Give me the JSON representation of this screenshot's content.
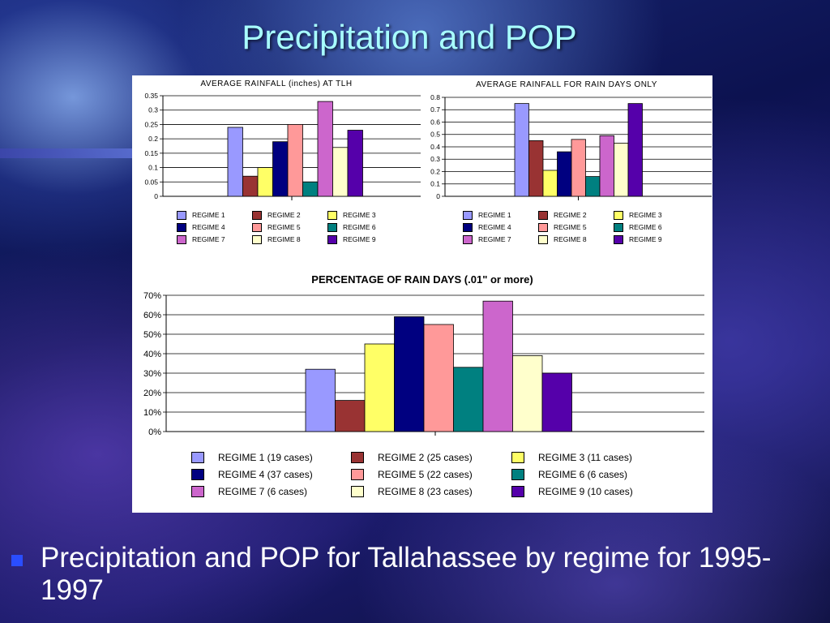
{
  "slide": {
    "title": "Precipitation and POP",
    "bullet": "Precipitation and POP for Tallahassee by regime for 1995-1997"
  },
  "colors": {
    "title_text": "#a8ffff",
    "bullet_mark": "#2a4dff",
    "regimes": [
      "#9999ff",
      "#993333",
      "#ffff66",
      "#000080",
      "#ff9999",
      "#008080",
      "#cc66cc",
      "#ffffcc",
      "#5500aa"
    ]
  },
  "chart_data": [
    {
      "type": "bar",
      "title": "AVERAGE RAINFALL (inches) AT TLH",
      "categories": [
        ""
      ],
      "ylim": [
        0,
        0.35
      ],
      "yticks": [
        "0",
        "0.05",
        "0.1",
        "0.15",
        "0.2",
        "0.25",
        "0.3",
        "0.35"
      ],
      "grid": true,
      "legend_placement": "bottom",
      "series": [
        {
          "name": "REGIME 1",
          "values": [
            0.24
          ]
        },
        {
          "name": "REGIME 2",
          "values": [
            0.07
          ]
        },
        {
          "name": "REGIME 3",
          "values": [
            0.1
          ]
        },
        {
          "name": "REGIME 4",
          "values": [
            0.19
          ]
        },
        {
          "name": "REGIME 5",
          "values": [
            0.25
          ]
        },
        {
          "name": "REGIME 6",
          "values": [
            0.05
          ]
        },
        {
          "name": "REGIME 7",
          "values": [
            0.33
          ]
        },
        {
          "name": "REGIME 8",
          "values": [
            0.17
          ]
        },
        {
          "name": "REGIME 9",
          "values": [
            0.23
          ]
        }
      ]
    },
    {
      "type": "bar",
      "title": "AVERAGE RAINFALL FOR RAIN DAYS ONLY",
      "categories": [
        ""
      ],
      "ylim": [
        0,
        0.8
      ],
      "yticks": [
        "0",
        "0.1",
        "0.2",
        "0.3",
        "0.4",
        "0.5",
        "0.6",
        "0.7",
        "0.8"
      ],
      "grid": true,
      "legend_placement": "bottom",
      "series": [
        {
          "name": "REGIME 1",
          "values": [
            0.75
          ]
        },
        {
          "name": "REGIME 2",
          "values": [
            0.45
          ]
        },
        {
          "name": "REGIME 3",
          "values": [
            0.21
          ]
        },
        {
          "name": "REGIME 4",
          "values": [
            0.36
          ]
        },
        {
          "name": "REGIME 5",
          "values": [
            0.46
          ]
        },
        {
          "name": "REGIME 6",
          "values": [
            0.16
          ]
        },
        {
          "name": "REGIME 7",
          "values": [
            0.49
          ]
        },
        {
          "name": "REGIME 8",
          "values": [
            0.43
          ]
        },
        {
          "name": "REGIME 9",
          "values": [
            0.75
          ]
        }
      ]
    },
    {
      "type": "bar",
      "title": "PERCENTAGE OF RAIN DAYS (.01\" or more)",
      "categories": [
        ""
      ],
      "ylim": [
        0,
        70
      ],
      "yticks": [
        "0%",
        "10%",
        "20%",
        "30%",
        "40%",
        "50%",
        "60%",
        "70%"
      ],
      "grid": true,
      "legend_placement": "bottom",
      "series": [
        {
          "name": "REGIME 1 (19 cases)",
          "values": [
            32
          ]
        },
        {
          "name": "REGIME 2 (25 cases)",
          "values": [
            16
          ]
        },
        {
          "name": "REGIME 3 (11 cases)",
          "values": [
            45
          ]
        },
        {
          "name": "REGIME 4 (37 cases)",
          "values": [
            59
          ]
        },
        {
          "name": "REGIME 5 (22 cases)",
          "values": [
            55
          ]
        },
        {
          "name": "REGIME 6 (6 cases)",
          "values": [
            33
          ]
        },
        {
          "name": "REGIME 7 (6 cases)",
          "values": [
            67
          ]
        },
        {
          "name": "REGIME 8 (23 cases)",
          "values": [
            39
          ]
        },
        {
          "name": "REGIME 9 (10 cases)",
          "values": [
            30
          ]
        }
      ]
    }
  ]
}
